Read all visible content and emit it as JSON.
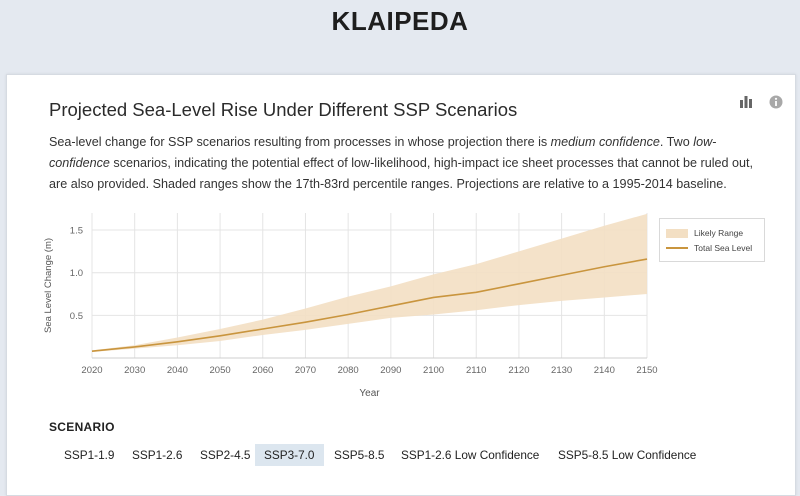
{
  "page": {
    "city": "KLAIPEDA"
  },
  "card": {
    "title": "Projected Sea-Level Rise Under Different SSP Scenarios",
    "description_parts": [
      "Sea-level change for SSP scenarios resulting from processes in whose projection there is ",
      "medium confidence",
      ". Two ",
      "low-confidence",
      " scenarios, indicating the potential effect of low-likelihood, high-impact ice sheet processes that cannot be ruled out, are also provided. Shaded ranges show the 17th-83rd percentile ranges. Projections are relative to a 1995-2014 baseline."
    ],
    "icons": {
      "chart_toggle": "bar-chart-icon",
      "info": "info-icon"
    }
  },
  "chart_data": {
    "type": "area",
    "xlabel": "Year",
    "ylabel": "Sea Level Change (m)",
    "xlim": [
      2020,
      2150
    ],
    "ylim": [
      0,
      1.7
    ],
    "xticks": [
      "2020",
      "2030",
      "2040",
      "2050",
      "2060",
      "2070",
      "2080",
      "2090",
      "2100",
      "2110",
      "2120",
      "2130",
      "2140",
      "2150"
    ],
    "yticks": [
      "0.5",
      "1.0",
      "1.5"
    ],
    "x": [
      2020,
      2030,
      2040,
      2050,
      2060,
      2070,
      2080,
      2090,
      2100,
      2110,
      2120,
      2130,
      2140,
      2150
    ],
    "series": [
      {
        "name": "Total Sea Level",
        "values": [
          0.08,
          0.13,
          0.19,
          0.26,
          0.34,
          0.42,
          0.51,
          0.61,
          0.71,
          0.77,
          0.87,
          0.97,
          1.07,
          1.16
        ],
        "color": "#c9953e"
      },
      {
        "name": "Likely Range",
        "lower": [
          0.07,
          0.11,
          0.15,
          0.2,
          0.27,
          0.33,
          0.4,
          0.47,
          0.51,
          0.56,
          0.62,
          0.67,
          0.71,
          0.75
        ],
        "upper": [
          0.09,
          0.15,
          0.24,
          0.34,
          0.45,
          0.58,
          0.72,
          0.84,
          0.98,
          1.1,
          1.25,
          1.4,
          1.55,
          1.69
        ],
        "color": "#f3dfc3"
      }
    ],
    "grid": true,
    "legend": "top-right"
  },
  "legend": {
    "band_label": "Likely Range",
    "line_label": "Total Sea Level"
  },
  "scenarios": {
    "label": "SCENARIO",
    "items": [
      {
        "label": "SSP1-1.9",
        "active": false
      },
      {
        "label": "SSP1-2.6",
        "active": false
      },
      {
        "label": "SSP2-4.5",
        "active": false
      },
      {
        "label": "SSP3-7.0",
        "active": true
      },
      {
        "label": "SSP5-8.5",
        "active": false
      },
      {
        "label": "SSP1-2.6 Low Confidence",
        "active": false
      },
      {
        "label": "SSP5-8.5 Low Confidence",
        "active": false
      }
    ]
  }
}
